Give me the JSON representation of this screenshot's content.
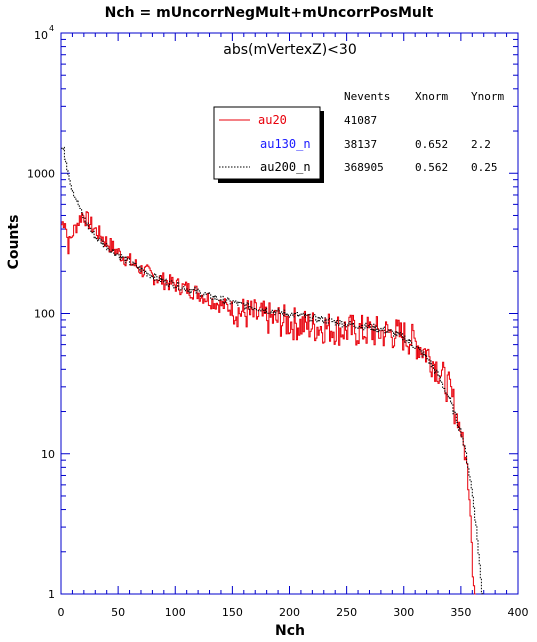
{
  "chart_data": {
    "type": "line",
    "title": "Nch = mUncorrNegMult+mUncorrPosMult",
    "subtitle": "abs(mVertexZ)<30",
    "xlabel": "Nch",
    "ylabel": "Counts",
    "xlim": [
      0,
      400
    ],
    "ylim": [
      1,
      10000
    ],
    "yscale": "log",
    "grid": false,
    "legend_position": "upper-middle",
    "x_ticks": [
      "0",
      "50",
      "100",
      "150",
      "200",
      "250",
      "300",
      "350",
      "400"
    ],
    "y_ticks": [
      {
        "mantissa": "1",
        "exp": ""
      },
      {
        "mantissa": "10",
        "exp": ""
      },
      {
        "mantissa": "100",
        "exp": ""
      },
      {
        "mantissa": "1000",
        "exp": ""
      },
      {
        "mantissa": "10",
        "exp": "4"
      }
    ],
    "table": {
      "headers": [
        "Nevents",
        "Xnorm",
        "Ynorm"
      ],
      "rows": [
        {
          "nevents": "41087",
          "xnorm": "",
          "ynorm": ""
        },
        {
          "nevents": "38137",
          "xnorm": "0.652",
          "ynorm": "2.2"
        },
        {
          "nevents": "368905",
          "xnorm": "0.562",
          "ynorm": "0.25"
        }
      ]
    },
    "series": [
      {
        "name": "au20",
        "color": "#e8000b",
        "style": "solid",
        "points": [
          [
            0,
            430
          ],
          [
            3,
            470
          ],
          [
            6,
            300
          ],
          [
            10,
            380
          ],
          [
            14,
            440
          ],
          [
            18,
            510
          ],
          [
            22,
            470
          ],
          [
            30,
            390
          ],
          [
            40,
            320
          ],
          [
            50,
            270
          ],
          [
            60,
            235
          ],
          [
            70,
            205
          ],
          [
            80,
            185
          ],
          [
            90,
            170
          ],
          [
            100,
            160
          ],
          [
            110,
            150
          ],
          [
            120,
            140
          ],
          [
            130,
            125
          ],
          [
            140,
            115
          ],
          [
            150,
            108
          ],
          [
            160,
            100
          ],
          [
            170,
            96
          ],
          [
            180,
            92
          ],
          [
            190,
            89
          ],
          [
            200,
            86
          ],
          [
            210,
            83
          ],
          [
            220,
            81
          ],
          [
            230,
            80
          ],
          [
            240,
            78
          ],
          [
            250,
            76
          ],
          [
            260,
            75
          ],
          [
            270,
            74
          ],
          [
            280,
            73
          ],
          [
            290,
            72
          ],
          [
            300,
            69
          ],
          [
            310,
            62
          ],
          [
            320,
            52
          ],
          [
            330,
            40
          ],
          [
            340,
            28
          ],
          [
            345,
            20
          ],
          [
            350,
            14
          ],
          [
            355,
            8
          ],
          [
            358,
            4
          ],
          [
            360,
            1.5
          ],
          [
            362,
            1
          ]
        ]
      },
      {
        "name": "au130_n",
        "color": "#1a1aff",
        "style": "solid",
        "points": []
      },
      {
        "name": "au200_n",
        "color": "#000000",
        "style": "dotted",
        "points": [
          [
            0,
            1500
          ],
          [
            2,
            1450
          ],
          [
            5,
            1100
          ],
          [
            8,
            850
          ],
          [
            12,
            680
          ],
          [
            16,
            560
          ],
          [
            20,
            470
          ],
          [
            25,
            400
          ],
          [
            30,
            350
          ],
          [
            40,
            300
          ],
          [
            50,
            260
          ],
          [
            60,
            230
          ],
          [
            70,
            205
          ],
          [
            80,
            185
          ],
          [
            90,
            170
          ],
          [
            100,
            160
          ],
          [
            110,
            150
          ],
          [
            120,
            142
          ],
          [
            130,
            133
          ],
          [
            140,
            126
          ],
          [
            150,
            120
          ],
          [
            160,
            114
          ],
          [
            170,
            110
          ],
          [
            180,
            106
          ],
          [
            190,
            102
          ],
          [
            200,
            99
          ],
          [
            210,
            96
          ],
          [
            220,
            93
          ],
          [
            230,
            90
          ],
          [
            240,
            87
          ],
          [
            250,
            84
          ],
          [
            260,
            82
          ],
          [
            270,
            80
          ],
          [
            280,
            77
          ],
          [
            290,
            73
          ],
          [
            300,
            67
          ],
          [
            310,
            58
          ],
          [
            320,
            48
          ],
          [
            330,
            36
          ],
          [
            340,
            24
          ],
          [
            350,
            14
          ],
          [
            355,
            9
          ],
          [
            360,
            5
          ],
          [
            363,
            3
          ],
          [
            366,
            1.6
          ],
          [
            368,
            1
          ]
        ]
      }
    ]
  }
}
